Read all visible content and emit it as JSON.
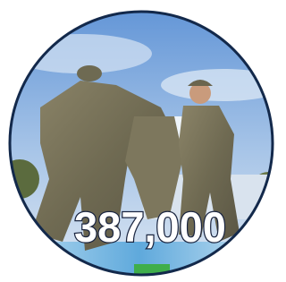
{
  "headline": {
    "number": "387,000"
  }
}
